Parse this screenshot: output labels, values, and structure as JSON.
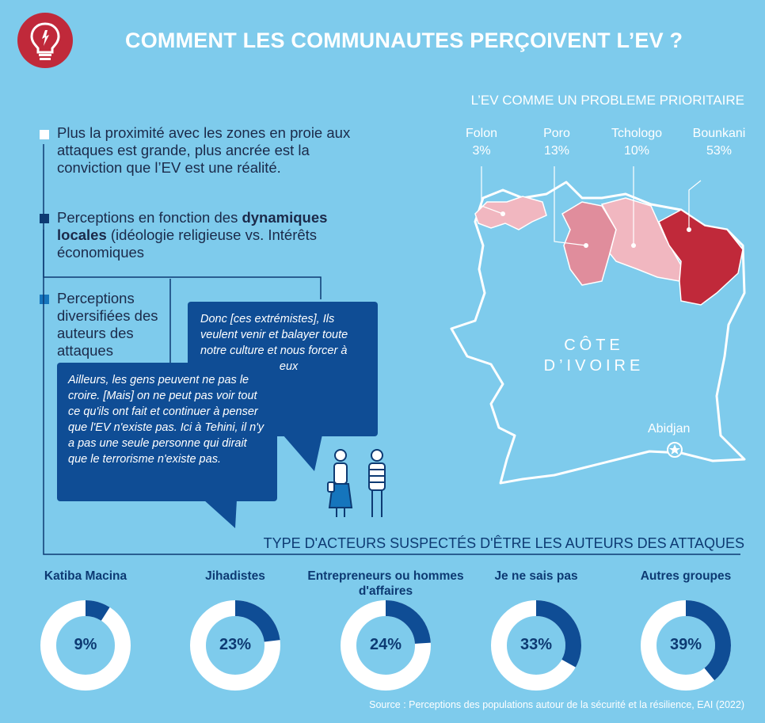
{
  "title": "COMMENT LES COMMUNAUTES PERÇOIVENT L’EV ?",
  "map_title": "L’EV COMME UN PROBLEME PRIORITAIRE",
  "bullets": {
    "b1": "Plus la proximité avec les zones en proie aux attaques est grande, plus ancrée est la conviction que l’EV est une réalité.",
    "b2_pre": "Perceptions en fonction des ",
    "b2_bold": "dynamiques locales",
    "b2_post": " (idéologie religieuse vs. Intérêts économiques",
    "b3": "Perceptions diversifiées des auteurs des attaques"
  },
  "quotes": {
    "q1": "Donc [ces extrémistes], Ils veulent venir et balayer toute notre culture et nous forcer à penser comme eux",
    "q2": "Ailleurs, les gens peuvent ne pas le croire. [Mais] on ne peut pas voir tout ce qu'ils ont fait et continuer à penser que l'EV n'existe pas. Ici à Tehini, il n'y a pas une seule personne qui dirait que le terrorisme n'existe pas."
  },
  "map": {
    "country": "CÔTE D’IVOIRE",
    "city": "Abidjan",
    "regions": [
      {
        "name": "Folon",
        "value": "3%"
      },
      {
        "name": "Poro",
        "value": "13%"
      },
      {
        "name": "Tchologo",
        "value": "10%"
      },
      {
        "name": "Bounkani",
        "value": "53%"
      }
    ],
    "colors": {
      "low": "#f1b7c0",
      "mid": "#e08d9c",
      "high": "#c0293a"
    }
  },
  "chart_title": "TYPE D'ACTEURS SUSPECTÉS D'ÊTRE LES AUTEURS DES ATTAQUES",
  "chart_data": {
    "type": "pie",
    "title": "TYPE D'ACTEURS SUSPECTÉS D'ÊTRE LES AUTEURS DES ATTAQUES",
    "categories": [
      "Katiba Macina",
      "Jihadistes",
      "Entrepreneurs ou hommes d'affaires",
      "Je ne sais pas",
      "Autres groupes"
    ],
    "values": [
      9,
      23,
      24,
      33,
      39
    ],
    "unit": "%",
    "colors": {
      "filled": "#0f4d95",
      "remaining": "#ffffff"
    }
  },
  "labels": [
    "9%",
    "23%",
    "24%",
    "33%",
    "39%"
  ],
  "source": "Source : Perceptions des populations autour de la sécurité et la résilience, EAI (2022)"
}
